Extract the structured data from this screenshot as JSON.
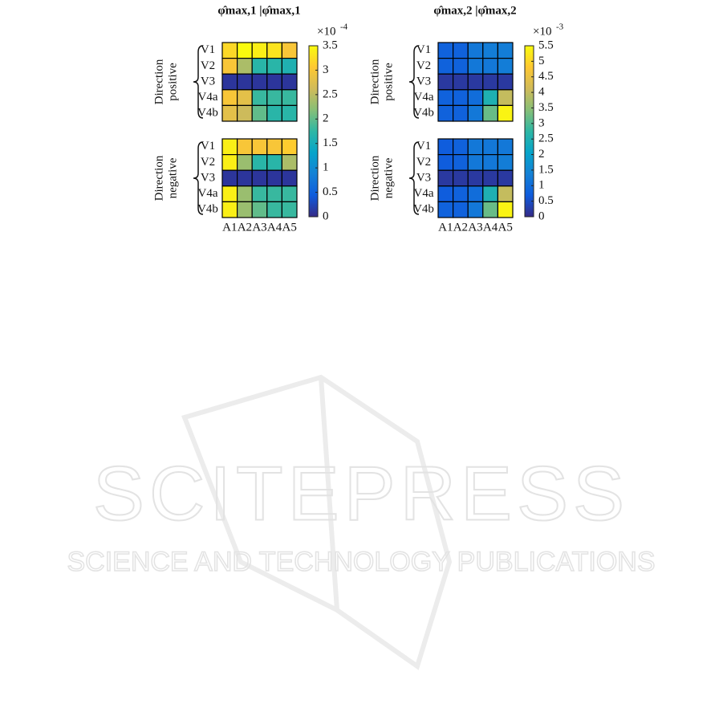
{
  "chart_data": [
    {
      "type": "heatmap",
      "title": "φ̂max,1 |φ̂max,1",
      "rows": [
        "V1",
        "V2",
        "V3",
        "V4a",
        "V4b"
      ],
      "columns": [
        "A1",
        "A2",
        "A3",
        "A4",
        "A5"
      ],
      "groups": [
        {
          "label": [
            "Direction",
            "positive"
          ],
          "values": [
            [
              3.2,
              3.5,
              3.4,
              3.3,
              3.0
            ],
            [
              3.0,
              2.4,
              1.7,
              1.7,
              1.6
            ],
            [
              0.1,
              0.1,
              0.1,
              0.1,
              0.1
            ],
            [
              3.0,
              2.8,
              1.8,
              1.8,
              1.8
            ],
            [
              2.8,
              2.6,
              2.0,
              1.7,
              1.7
            ]
          ]
        },
        {
          "label": [
            "Direction",
            "negative"
          ],
          "values": [
            [
              3.4,
              3.0,
              3.0,
              3.0,
              3.1
            ],
            [
              3.4,
              2.3,
              1.7,
              1.7,
              2.4
            ],
            [
              0.1,
              0.1,
              0.1,
              0.1,
              0.1
            ],
            [
              3.4,
              2.3,
              1.8,
              1.8,
              1.8
            ],
            [
              3.4,
              2.3,
              2.0,
              1.8,
              1.8
            ]
          ]
        }
      ],
      "clim": [
        0,
        3.5
      ],
      "cticks": [
        0,
        0.5,
        1,
        1.5,
        2,
        2.5,
        3,
        3.5
      ],
      "colorbar_multiplier": "×10",
      "colorbar_exponent": "-4",
      "colormap": [
        "#352a87",
        "#0f5cdd",
        "#1481d6",
        "#06a4ca",
        "#2eb7a4",
        "#87bf77",
        "#d1bb59",
        "#fec832",
        "#f9fb0e"
      ]
    },
    {
      "type": "heatmap",
      "title": "φ̂max,2 |φ̂max,2",
      "rows": [
        "V1",
        "V2",
        "V3",
        "V4a",
        "V4b"
      ],
      "columns": [
        "A1",
        "A2",
        "A3",
        "A4",
        "A5"
      ],
      "groups": [
        {
          "label": [
            "Direction",
            "positive"
          ],
          "values": [
            [
              0.8,
              0.8,
              1.2,
              1.3,
              1.3
            ],
            [
              0.8,
              0.8,
              1.2,
              1.2,
              1.3
            ],
            [
              0.2,
              0.2,
              0.2,
              0.2,
              0.2
            ],
            [
              0.8,
              0.8,
              1.0,
              2.5,
              4.0
            ],
            [
              0.8,
              0.8,
              1.2,
              3.2,
              5.4
            ]
          ]
        },
        {
          "label": [
            "Direction",
            "negative"
          ],
          "values": [
            [
              0.7,
              0.8,
              1.2,
              1.2,
              1.2
            ],
            [
              0.7,
              0.8,
              1.2,
              1.2,
              1.3
            ],
            [
              0.2,
              0.2,
              0.2,
              0.2,
              0.2
            ],
            [
              0.7,
              0.8,
              1.0,
              2.5,
              4.0
            ],
            [
              0.8,
              0.8,
              1.2,
              3.2,
              5.4
            ]
          ]
        }
      ],
      "clim": [
        0,
        5.5
      ],
      "cticks": [
        0,
        0.5,
        1,
        1.5,
        2,
        2.5,
        3,
        3.5,
        4,
        4.5,
        5,
        5.5
      ],
      "colorbar_multiplier": "×10",
      "colorbar_exponent": "-3",
      "colormap": [
        "#352a87",
        "#0f5cdd",
        "#1481d6",
        "#06a4ca",
        "#2eb7a4",
        "#87bf77",
        "#d1bb59",
        "#fec832",
        "#f9fb0e"
      ]
    }
  ],
  "watermark": {
    "title": "SCITEPRESS",
    "subtitle": "SCIENCE AND TECHNOLOGY PUBLICATIONS"
  }
}
